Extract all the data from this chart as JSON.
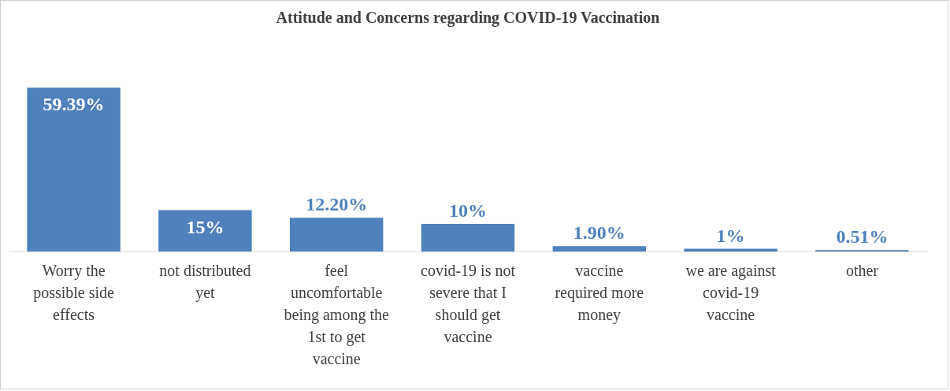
{
  "chart_data": {
    "type": "bar",
    "title": "Attitude and Concerns regarding COVID-19 Vaccination",
    "categories": [
      "Worry the possible side effects",
      "not distributed yet",
      "feel uncomfortable being among the 1st to get vaccine",
      "covid-19 is not severe that I should get vaccine",
      "vaccine required more money",
      "we are against covid-19 vaccine",
      "other"
    ],
    "values": [
      59.39,
      15,
      12.2,
      10,
      1.9,
      1,
      0.51
    ],
    "value_labels": [
      "59.39%",
      "15%",
      "12.20%",
      "10%",
      "1.90%",
      "1%",
      "0.51%"
    ],
    "color": "#4f81bd"
  }
}
